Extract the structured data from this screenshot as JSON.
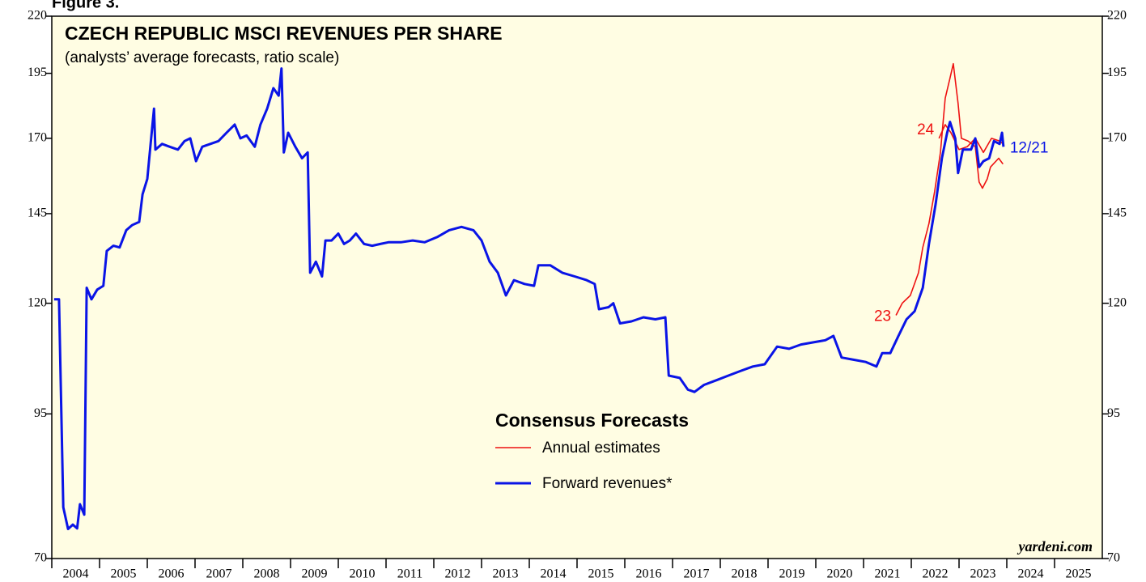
{
  "figure_label": "Figure 3.",
  "chart_data": {
    "type": "line",
    "title": "CZECH REPUBLIC MSCI REVENUES PER SHARE",
    "subtitle": "(analysts’ average forecasts, ratio scale)",
    "source": "yardeni.com",
    "log_scale": true,
    "ylim": [
      70,
      220
    ],
    "yticks": [
      70,
      95,
      120,
      145,
      170,
      195,
      220
    ],
    "xlim": [
      2004,
      2026
    ],
    "x_years": [
      2004,
      2005,
      2006,
      2007,
      2008,
      2009,
      2010,
      2011,
      2012,
      2013,
      2014,
      2015,
      2016,
      2017,
      2018,
      2019,
      2020,
      2021,
      2022,
      2023,
      2024,
      2025
    ],
    "legend_title": "Consensus Forecasts",
    "background": "#fffde3",
    "series": [
      {
        "name": "Annual estimates",
        "color": "#ee1111",
        "width": 1.6,
        "label": "23",
        "x": [
          2021.68,
          2021.81,
          2021.98,
          2022.15,
          2022.24,
          2022.37,
          2022.49,
          2022.61,
          2022.71,
          2022.81,
          2022.88,
          2022.98,
          2023.05,
          2023.19,
          2023.34,
          2023.42,
          2023.49,
          2023.59,
          2023.66,
          2023.83,
          2023.92
        ],
        "values": [
          117,
          120,
          122,
          128,
          135,
          142,
          152,
          165,
          185,
          193,
          199,
          183,
          170,
          169,
          167,
          155,
          153,
          156,
          160,
          163,
          161
        ]
      },
      {
        "name": "Annual estimates",
        "color": "#ee1111",
        "width": 1.6,
        "label": "24",
        "x": [
          2022.58,
          2022.71,
          2022.83,
          2023.0,
          2023.17,
          2023.34,
          2023.51,
          2023.68,
          2023.85,
          2023.92
        ],
        "values": [
          170,
          175,
          172,
          166,
          167,
          170,
          165,
          170,
          169,
          168
        ]
      },
      {
        "name": "Forward revenues*",
        "color": "#0a14e6",
        "width": 3,
        "label": "12/21",
        "x": [
          2004.05,
          2004.15,
          2004.24,
          2004.34,
          2004.44,
          2004.53,
          2004.59,
          2004.68,
          2004.73,
          2004.83,
          2004.95,
          2005.08,
          2005.15,
          2005.29,
          2005.42,
          2005.56,
          2005.68,
          2005.83,
          2005.9,
          2006.0,
          2006.07,
          2006.14,
          2006.17,
          2006.31,
          2006.47,
          2006.64,
          2006.78,
          2006.9,
          2007.02,
          2007.15,
          2007.32,
          2007.49,
          2007.66,
          2007.83,
          2007.95,
          2008.08,
          2008.25,
          2008.37,
          2008.51,
          2008.64,
          2008.75,
          2008.81,
          2008.86,
          2008.95,
          2009.1,
          2009.24,
          2009.36,
          2009.41,
          2009.53,
          2009.66,
          2009.73,
          2009.86,
          2010.0,
          2010.12,
          2010.24,
          2010.37,
          2010.54,
          2010.71,
          2010.88,
          2011.05,
          2011.31,
          2011.56,
          2011.81,
          2012.07,
          2012.32,
          2012.58,
          2012.83,
          2013.0,
          2013.17,
          2013.34,
          2013.51,
          2013.68,
          2013.9,
          2014.1,
          2014.19,
          2014.44,
          2014.69,
          2014.95,
          2015.2,
          2015.37,
          2015.46,
          2015.66,
          2015.76,
          2015.9,
          2016.14,
          2016.39,
          2016.64,
          2016.85,
          2016.92,
          2017.15,
          2017.32,
          2017.46,
          2017.66,
          2017.92,
          2018.17,
          2018.42,
          2018.68,
          2018.93,
          2019.19,
          2019.44,
          2019.69,
          2019.95,
          2020.2,
          2020.37,
          2020.54,
          2020.8,
          2021.05,
          2021.27,
          2021.39,
          2021.56,
          2021.73,
          2021.9,
          2022.07,
          2022.24,
          2022.37,
          2022.51,
          2022.64,
          2022.75,
          2022.81,
          2022.92,
          2022.98,
          2023.08,
          2023.25,
          2023.34,
          2023.42,
          2023.51,
          2023.63,
          2023.73,
          2023.85,
          2023.9,
          2023.93
        ],
        "values": [
          121,
          121,
          78,
          74.5,
          75.2,
          74.6,
          78.5,
          76.8,
          124,
          121,
          123.5,
          124.5,
          134,
          135.5,
          135,
          140,
          141.5,
          142.5,
          151,
          156,
          168,
          181,
          166,
          168,
          167,
          166,
          169,
          170,
          162,
          167,
          168,
          169,
          172,
          175,
          170,
          171,
          167,
          175,
          181,
          189,
          186,
          197,
          165,
          172,
          167,
          163,
          165,
          128,
          131,
          127,
          137,
          137,
          139,
          136,
          137,
          139,
          136,
          135.5,
          136,
          136.5,
          136.5,
          137,
          136.5,
          138,
          140,
          141,
          140,
          137,
          131,
          128,
          122,
          126,
          125,
          124.5,
          130,
          130,
          128,
          127,
          126,
          125,
          118.5,
          119,
          120,
          115,
          115.5,
          116.5,
          116,
          116.5,
          103,
          102.5,
          100,
          99.5,
          101,
          102,
          103,
          104,
          105,
          105.5,
          109.5,
          109,
          110,
          110.5,
          111,
          112,
          107,
          106.5,
          106,
          105,
          108,
          108,
          112,
          116,
          118,
          124,
          136,
          148,
          163,
          172,
          176,
          170,
          158,
          166,
          166,
          170,
          160,
          162,
          163,
          169,
          168,
          172,
          167
        ]
      }
    ]
  }
}
